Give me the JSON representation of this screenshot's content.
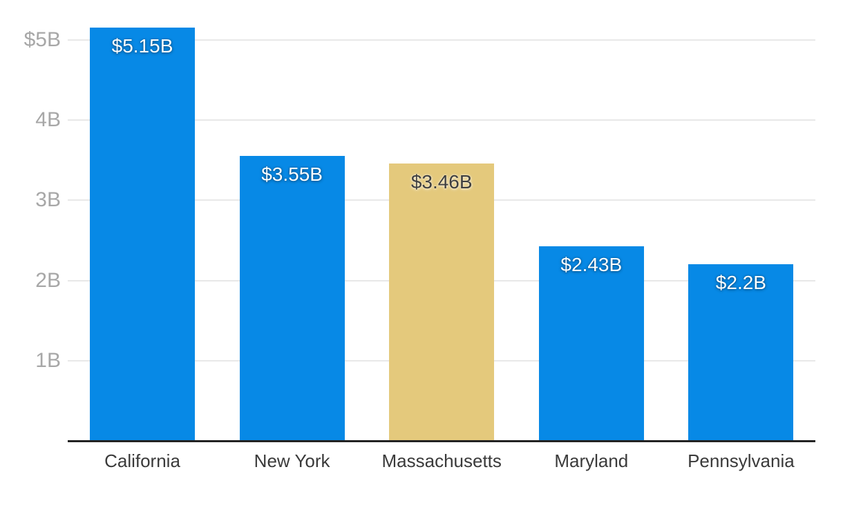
{
  "chart_data": {
    "type": "bar",
    "categories": [
      "California",
      "New York",
      "Massachusetts",
      "Maryland",
      "Pennsylvania"
    ],
    "values": [
      5.15,
      3.55,
      3.46,
      2.43,
      2.2
    ],
    "bar_labels": [
      "$5.15B",
      "$3.55B",
      "$3.46B",
      "$2.43B",
      "$2.2B"
    ],
    "highlight_index": 2,
    "y_axis": {
      "ticks": [
        {
          "value": 1,
          "label": "1B"
        },
        {
          "value": 2,
          "label": "2B"
        },
        {
          "value": 3,
          "label": "3B"
        },
        {
          "value": 4,
          "label": "4B"
        },
        {
          "value": 5,
          "label": "$5B"
        }
      ],
      "ylim": [
        0,
        5.5
      ],
      "grid": true
    },
    "colors": {
      "bar": "#0789e6",
      "highlight": "#e4c97c",
      "value_label_on_bar": "#ffffff",
      "value_label_on_highlight": "#3f3f3f",
      "gridline": "#e8e8e8",
      "axis_line": "#222222",
      "ytick_label": "#a7a7a7",
      "xtick_label": "#3a3a3a"
    },
    "legend": null
  }
}
